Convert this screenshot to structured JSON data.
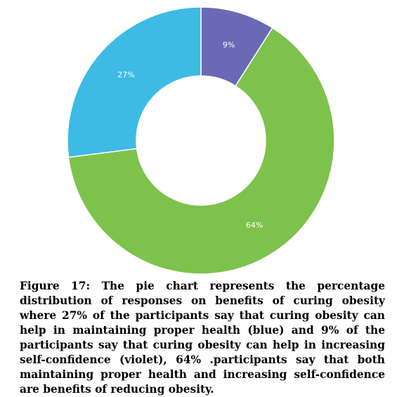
{
  "chart_data": {
    "type": "pie",
    "donut": true,
    "categories": [
      "blue",
      "violet",
      "green"
    ],
    "values": [
      27,
      9,
      64
    ],
    "data_labels": [
      "27%",
      "9%",
      "64%"
    ],
    "colors": [
      "#3dbbe5",
      "#6a69b5",
      "#7dc24b"
    ],
    "start_slice": 1,
    "title": "",
    "legend": "none"
  },
  "caption": {
    "text": "Figure 17: The pie chart represents the percentage distribution of responses on benefits of curing obesity where 27% of the participants say that curing obesity can help in maintaining proper health (blue) and 9% of the participants say that curing obesity can help in increasing self-confidence (violet), 64% .participants say that both maintaining proper health and increasing self-confidence are benefits of reducing obesity."
  }
}
